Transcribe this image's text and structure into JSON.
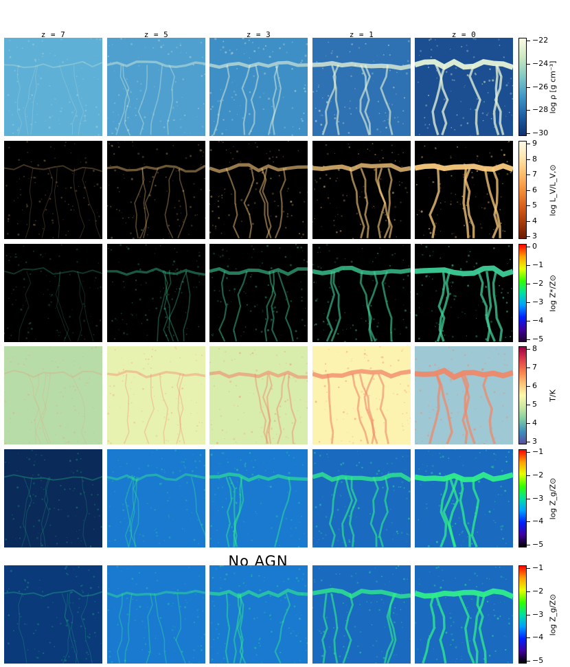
{
  "columns": [
    "z = 7",
    "z = 5",
    "z = 3",
    "z = 1",
    "z = 0"
  ],
  "section_label": "No AGN",
  "rows": [
    {
      "quantity": "gas-density",
      "colorbar_label": "log ρ [g cm⁻³]",
      "ticks": [
        "−22",
        "−24",
        "−26",
        "−28",
        "−30"
      ],
      "gradient": [
        "#fbfbe4",
        "#c9e8c0",
        "#7fc8c5",
        "#3f97c7",
        "#1d5fa6",
        "#0f3070"
      ]
    },
    {
      "quantity": "stellar-luminosity",
      "colorbar_label": "log L_V/L_V,⊙",
      "ticks": [
        "9",
        "8",
        "7",
        "6",
        "5",
        "4",
        "3"
      ],
      "gradient": [
        "#fffbe8",
        "#ffe6ad",
        "#ffbf6b",
        "#f5903a",
        "#d7601a",
        "#a83a0b",
        "#6b1a00"
      ]
    },
    {
      "quantity": "stellar-metallicity",
      "colorbar_label": "log Z*/Z⊙",
      "ticks": [
        "0",
        "−1",
        "−2",
        "−3",
        "−4",
        "−5"
      ],
      "gradient": [
        "#ff0000",
        "#ffa000",
        "#e6ff00",
        "#32ff00",
        "#00e0a0",
        "#00a0ff",
        "#0020ff",
        "#4000a0",
        "#200030"
      ]
    },
    {
      "quantity": "temperature",
      "colorbar_label": "T/K",
      "ticks": [
        "8",
        "7",
        "6",
        "5",
        "4",
        "3"
      ],
      "gradient": [
        "#9b0041",
        "#db3a4a",
        "#f77c4a",
        "#fdc374",
        "#fdf9ae",
        "#c8e8a0",
        "#7fcba4",
        "#3f8fbe",
        "#5a4ea0"
      ]
    },
    {
      "quantity": "gas-metallicity",
      "colorbar_label": "log Z_g/Z⊙",
      "ticks": [
        "−1",
        "−2",
        "−3",
        "−4",
        "−5"
      ],
      "gradient": [
        "#ff0000",
        "#ffa000",
        "#e6ff00",
        "#32ff00",
        "#00e0a0",
        "#00a0ff",
        "#0020ff",
        "#4000a0",
        "#000000"
      ]
    },
    {
      "quantity": "gas-metallicity-no-agn",
      "colorbar_label": "log Z_g/Z⊙",
      "ticks": [
        "−1",
        "−2",
        "−3",
        "−4",
        "−5"
      ],
      "gradient": [
        "#ff0000",
        "#ffa000",
        "#e6ff00",
        "#32ff00",
        "#00e0a0",
        "#00a0ff",
        "#0020ff",
        "#4000a0",
        "#000000"
      ]
    }
  ],
  "panel_styles": {
    "gas-density": {
      "bg": [
        "#5fb0d6",
        "#4fa0cf",
        "#3f8fc7",
        "#2f72b3",
        "#1c4f92"
      ],
      "fil": "#e8f6d8"
    },
    "stellar-luminosity": {
      "bg": [
        "#000000",
        "#000000",
        "#000000",
        "#000000",
        "#000000"
      ],
      "fil": "#ffcf80"
    },
    "stellar-metallicity": {
      "bg": [
        "#000000",
        "#000000",
        "#000000",
        "#000000",
        "#000000"
      ],
      "fil": "#3fd29a"
    },
    "temperature": {
      "bg": [
        "#b8dca8",
        "#e8f2b0",
        "#d8ecac",
        "#fdf3b0",
        "#9ec8d4"
      ],
      "fil": "#f08868"
    },
    "gas-metallicity": {
      "bg": [
        "#0a2a5a",
        "#1a7ad0",
        "#1a7ad0",
        "#1a6ac0",
        "#1a6ac0"
      ],
      "fil": "#2ff08a"
    },
    "gas-metallicity-no-agn": {
      "bg": [
        "#0a3a7a",
        "#1a7ad0",
        "#1a7ad0",
        "#1a6ac0",
        "#1a6ac0"
      ],
      "fil": "#2ff08a"
    }
  }
}
